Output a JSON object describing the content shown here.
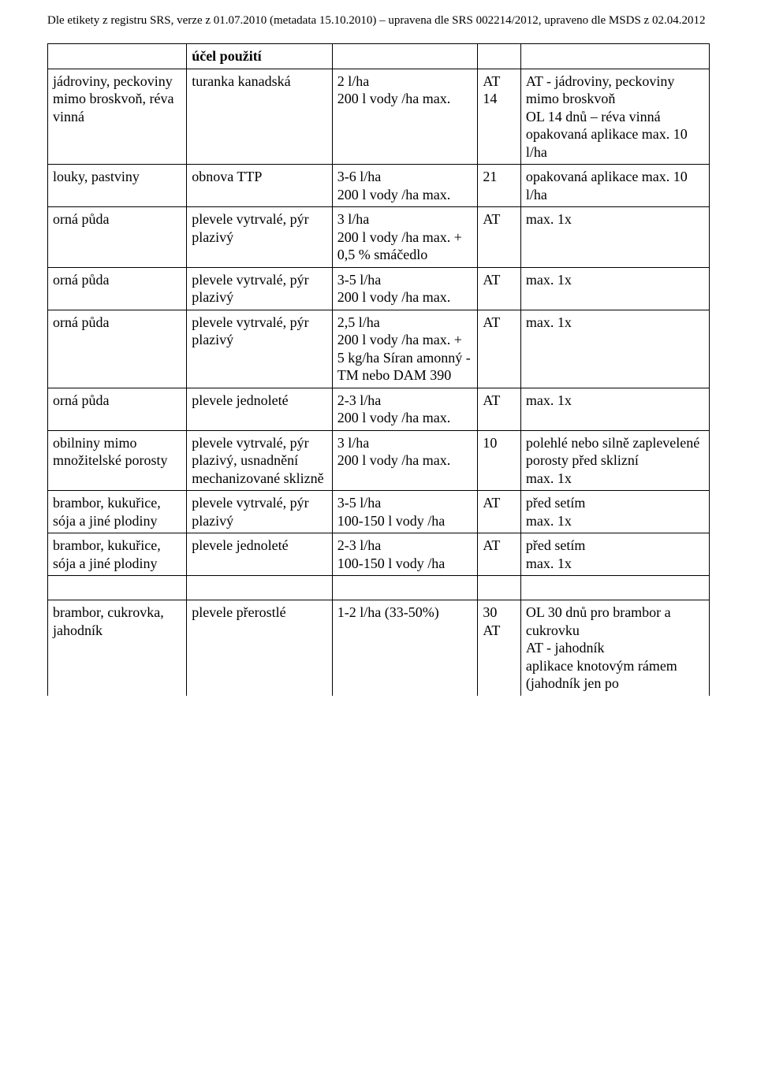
{
  "header": "Dle etikety z registru SRS, verze z 01.07.2010  (metadata 15.10.2010) – upravena dle SRS 002214/2012, upraveno dle MSDS z 02.04.2012",
  "topRow": {
    "c2": "účel použití"
  },
  "rows": [
    {
      "c1": "jádroviny, peckoviny mimo broskvoň, réva vinná",
      "c2": "turanka kanadská",
      "c3": "2 l/ha\n200 l vody /ha max.",
      "c4": "AT\n14",
      "c5": "AT - jádroviny, peckoviny mimo broskvoň\nOL 14 dnů – réva vinná opakovaná aplikace max. 10 l/ha"
    },
    {
      "c1": "louky, pastviny",
      "c2": "obnova TTP",
      "c3": "3-6 l/ha\n200 l vody /ha max.",
      "c4": "21",
      "c5": "opakovaná aplikace max. 10 l/ha"
    },
    {
      "c1": "orná půda",
      "c2": "plevele vytrvalé, pýr plazivý",
      "c3": "3 l/ha\n200 l vody /ha max. + 0,5 % smáčedlo",
      "c4": "AT",
      "c5": "max. 1x"
    },
    {
      "c1": "orná půda",
      "c2": "plevele vytrvalé, pýr plazivý",
      "c3": "3-5 l/ha\n200 l vody /ha max.",
      "c4": "AT",
      "c5": "max. 1x"
    },
    {
      "c1": "orná půda",
      "c2": "plevele vytrvalé, pýr plazivý",
      "c3": "2,5 l/ha\n200 l vody /ha max. + 5 kg/ha Síran amonný - TM nebo DAM 390",
      "c4": "AT",
      "c5": "max. 1x"
    },
    {
      "c1": "orná půda",
      "c2": "plevele jednoleté",
      "c3": "2-3 l/ha\n200 l vody /ha max.",
      "c4": "AT",
      "c5": "max. 1x"
    },
    {
      "c1": "obilniny mimo množitelské porosty",
      "c2": "plevele vytrvalé, pýr plazivý, usnadnění mechanizované sklizně",
      "c3": "3 l/ha\n200 l vody /ha max.",
      "c4": "10",
      "c5": "polehlé nebo silně zaplevelené porosty před sklizní\nmax. 1x"
    },
    {
      "c1": "brambor, kukuřice, sója a jiné plodiny",
      "c2": "plevele vytrvalé, pýr plazivý",
      "c3": "3-5 l/ha\n100-150 l vody /ha",
      "c4": "AT",
      "c5": "před setím\nmax. 1x"
    },
    {
      "c1": "brambor, kukuřice, sója a jiné plodiny",
      "c2": "plevele jednoleté",
      "c3": "2-3 l/ha\n100-150 l vody /ha",
      "c4": "AT",
      "c5": "před setím\nmax. 1x"
    }
  ],
  "lastRow": {
    "c1": "brambor, cukrovka, jahodník",
    "c2": "plevele přerostlé",
    "c3": "1-2 l/ha (33-50%)",
    "c4": "30\nAT",
    "c5": "OL 30 dnů pro brambor a cukrovku\nAT - jahodník\naplikace knotovým rámem (jahodník jen po"
  }
}
